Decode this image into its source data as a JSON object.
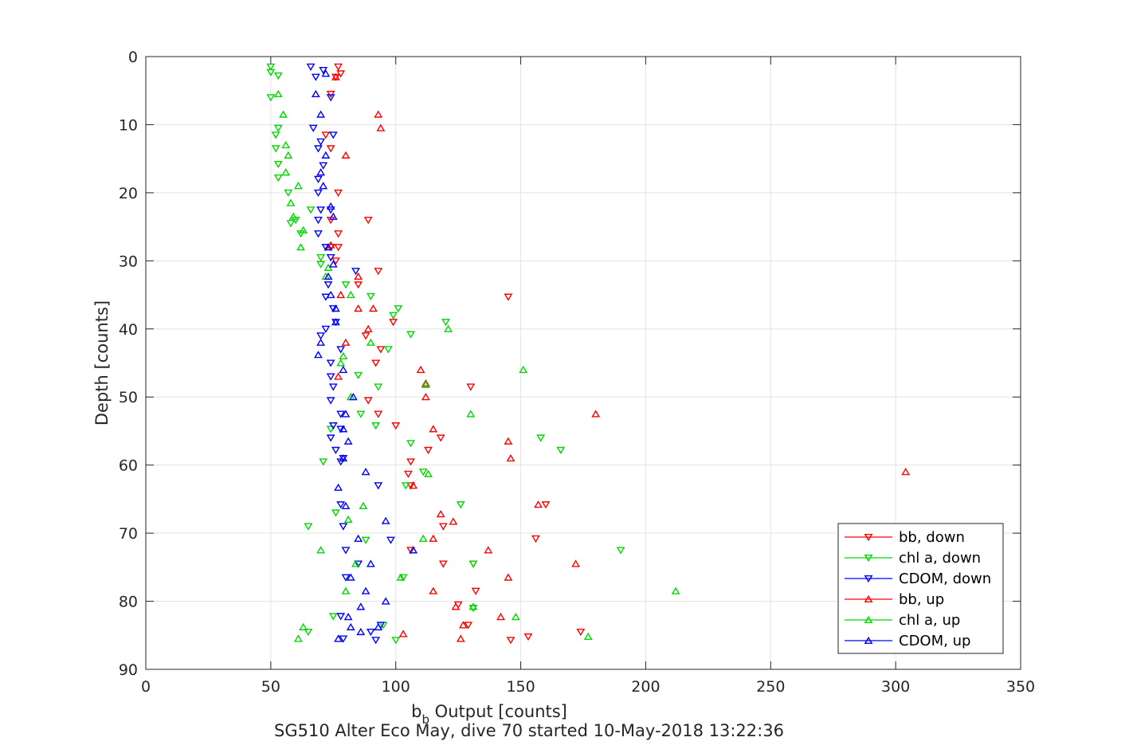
{
  "chart_data": {
    "type": "scatter",
    "title": "",
    "xlabel": "b",
    "xlabel_sub": "b",
    "xlabel_rest": " Output [counts]",
    "ylabel": "Depth [counts]",
    "caption": "SG510 Alter Eco May, dive 70 started 10-May-2018 13:22:36",
    "xlim": [
      0,
      350
    ],
    "ylim": [
      0,
      90
    ],
    "y_reversed": true,
    "grid": true,
    "legend_position": "bottom-right",
    "xticks": [
      0,
      50,
      100,
      150,
      200,
      250,
      300,
      350
    ],
    "yticks": [
      0,
      10,
      20,
      30,
      40,
      50,
      60,
      70,
      80,
      90
    ],
    "series": [
      {
        "name": "bb, down",
        "color": "#ff0000",
        "marker": "down",
        "points": [
          [
            77,
            1.5
          ],
          [
            78,
            2.5
          ],
          [
            76,
            3
          ],
          [
            74,
            5.5
          ],
          [
            72,
            11.5
          ],
          [
            74,
            13.5
          ],
          [
            77,
            20
          ],
          [
            89,
            24
          ],
          [
            74,
            24
          ],
          [
            77,
            26
          ],
          [
            74,
            28
          ],
          [
            77,
            28
          ],
          [
            76,
            30
          ],
          [
            93,
            31.5
          ],
          [
            85,
            33.5
          ],
          [
            145,
            35.3
          ],
          [
            99,
            39
          ],
          [
            88,
            41
          ],
          [
            94,
            43
          ],
          [
            92,
            45
          ],
          [
            130,
            48.5
          ],
          [
            89,
            50.5
          ],
          [
            93,
            52.5
          ],
          [
            100,
            54.2
          ],
          [
            118,
            56
          ],
          [
            113,
            57.8
          ],
          [
            106,
            59.5
          ],
          [
            105,
            61.3
          ],
          [
            106,
            63
          ],
          [
            160,
            65.8
          ],
          [
            119,
            69
          ],
          [
            156,
            70.8
          ],
          [
            106,
            72.5
          ],
          [
            131,
            74.5
          ],
          [
            119,
            74.5
          ],
          [
            132,
            78.5
          ],
          [
            125,
            80.5
          ],
          [
            129,
            83.5
          ],
          [
            174,
            84.5
          ],
          [
            153,
            85.2
          ],
          [
            146,
            85.7
          ]
        ]
      },
      {
        "name": "chl a, down",
        "color": "#00d800",
        "marker": "down",
        "points": [
          [
            50,
            1.5
          ],
          [
            50,
            2.3
          ],
          [
            53,
            2.8
          ],
          [
            50,
            6
          ],
          [
            53,
            10.5
          ],
          [
            52,
            11.5
          ],
          [
            52,
            13.5
          ],
          [
            53,
            15.8
          ],
          [
            53,
            17.8
          ],
          [
            57,
            20
          ],
          [
            66,
            22.5
          ],
          [
            60,
            24
          ],
          [
            58,
            24.5
          ],
          [
            62,
            26
          ],
          [
            70,
            29.5
          ],
          [
            70,
            30.5
          ],
          [
            80,
            33.5
          ],
          [
            90,
            35.2
          ],
          [
            101,
            37
          ],
          [
            99,
            38
          ],
          [
            120,
            39
          ],
          [
            97,
            43
          ],
          [
            106,
            40.8
          ],
          [
            85,
            46.8
          ],
          [
            93,
            48.5
          ],
          [
            86,
            52.5
          ],
          [
            92,
            54.2
          ],
          [
            74,
            54.7
          ],
          [
            106,
            56.8
          ],
          [
            158,
            56
          ],
          [
            166,
            57.8
          ],
          [
            71,
            59.5
          ],
          [
            111,
            61
          ],
          [
            104,
            63
          ],
          [
            126,
            65.8
          ],
          [
            76,
            67
          ],
          [
            65,
            69
          ],
          [
            88,
            71
          ],
          [
            190,
            72.5
          ],
          [
            131,
            74.5
          ],
          [
            103,
            76.5
          ],
          [
            95,
            83.5
          ],
          [
            75,
            82.2
          ],
          [
            65,
            84.5
          ],
          [
            131,
            81
          ],
          [
            100,
            85.7
          ]
        ]
      },
      {
        "name": "CDOM, down",
        "color": "#0000ff",
        "marker": "down",
        "points": [
          [
            66,
            1.5
          ],
          [
            71,
            2
          ],
          [
            68,
            3
          ],
          [
            74,
            6
          ],
          [
            67,
            10.5
          ],
          [
            70,
            12.5
          ],
          [
            69,
            13.5
          ],
          [
            75,
            11.5
          ],
          [
            71,
            16
          ],
          [
            69,
            18
          ],
          [
            69,
            20
          ],
          [
            70,
            22.5
          ],
          [
            74,
            22.5
          ],
          [
            69,
            24
          ],
          [
            69,
            26
          ],
          [
            72,
            28
          ],
          [
            74,
            29.5
          ],
          [
            84,
            31.5
          ],
          [
            73,
            33.5
          ],
          [
            72,
            35.3
          ],
          [
            75,
            37
          ],
          [
            76,
            39
          ],
          [
            72,
            40
          ],
          [
            70,
            41
          ],
          [
            78,
            43
          ],
          [
            74,
            45
          ],
          [
            74,
            47
          ],
          [
            75,
            48.5
          ],
          [
            74,
            50.5
          ],
          [
            78,
            52.5
          ],
          [
            75,
            54.2
          ],
          [
            78,
            54.7
          ],
          [
            74,
            56
          ],
          [
            76,
            57.8
          ],
          [
            78,
            59.5
          ],
          [
            79,
            59
          ],
          [
            93,
            63
          ],
          [
            78,
            65.8
          ],
          [
            79,
            69
          ],
          [
            98,
            71
          ],
          [
            80,
            72.5
          ],
          [
            85,
            74.5
          ],
          [
            80,
            76.5
          ],
          [
            78,
            82.2
          ],
          [
            94,
            83.5
          ],
          [
            90,
            84.5
          ],
          [
            79,
            85.5
          ],
          [
            92,
            85.7
          ]
        ]
      },
      {
        "name": "bb, up",
        "color": "#ff0000",
        "marker": "up",
        "points": [
          [
            76,
            3
          ],
          [
            93,
            8.5
          ],
          [
            94,
            10.5
          ],
          [
            80,
            14.5
          ],
          [
            85,
            32.3
          ],
          [
            78,
            35
          ],
          [
            85,
            37
          ],
          [
            91,
            37
          ],
          [
            89,
            40
          ],
          [
            80,
            42
          ],
          [
            110,
            46
          ],
          [
            112,
            48
          ],
          [
            112,
            50
          ],
          [
            180,
            52.5
          ],
          [
            115,
            54.7
          ],
          [
            145,
            56.5
          ],
          [
            146,
            59
          ],
          [
            304,
            61
          ],
          [
            107,
            63
          ],
          [
            157,
            65.8
          ],
          [
            118,
            67.2
          ],
          [
            123,
            68.3
          ],
          [
            115,
            70.8
          ],
          [
            137,
            72.5
          ],
          [
            172,
            74.5
          ],
          [
            145,
            76.5
          ],
          [
            115,
            78.5
          ],
          [
            124,
            80.8
          ],
          [
            142,
            82.3
          ],
          [
            127,
            83.5
          ],
          [
            103,
            84.8
          ],
          [
            126,
            85.5
          ],
          [
            77,
            47
          ],
          [
            74,
            27.7
          ]
        ]
      },
      {
        "name": "chl a, up",
        "color": "#00d800",
        "marker": "up",
        "points": [
          [
            53,
            5.5
          ],
          [
            55,
            8.5
          ],
          [
            56,
            13
          ],
          [
            57,
            14.5
          ],
          [
            56,
            17
          ],
          [
            61,
            19
          ],
          [
            58,
            21.5
          ],
          [
            59,
            23.5
          ],
          [
            63,
            25.5
          ],
          [
            62,
            28
          ],
          [
            73,
            31
          ],
          [
            72,
            32.3
          ],
          [
            82,
            35
          ],
          [
            112,
            48.2
          ],
          [
            82,
            50
          ],
          [
            130,
            52.5
          ],
          [
            151,
            46
          ],
          [
            107,
            72.5
          ],
          [
            113,
            61.3
          ],
          [
            121,
            40
          ],
          [
            90,
            42
          ],
          [
            79,
            44
          ],
          [
            78,
            45
          ],
          [
            87,
            66
          ],
          [
            81,
            68
          ],
          [
            70,
            72.5
          ],
          [
            212,
            78.5
          ],
          [
            148,
            82.3
          ],
          [
            131,
            80.8
          ],
          [
            80,
            78.5
          ],
          [
            84,
            74.5
          ],
          [
            111,
            70.8
          ],
          [
            61,
            85.5
          ],
          [
            63,
            83.8
          ],
          [
            177,
            85.2
          ],
          [
            102,
            76.5
          ]
        ]
      },
      {
        "name": "CDOM, up",
        "color": "#0000ff",
        "marker": "up",
        "points": [
          [
            72,
            2.5
          ],
          [
            68,
            5.5
          ],
          [
            70,
            8.5
          ],
          [
            72,
            14.5
          ],
          [
            70,
            17
          ],
          [
            71,
            19
          ],
          [
            74,
            22
          ],
          [
            75,
            23.5
          ],
          [
            73,
            28
          ],
          [
            75,
            30.5
          ],
          [
            73,
            32.3
          ],
          [
            74,
            35
          ],
          [
            76,
            37
          ],
          [
            76,
            39
          ],
          [
            70,
            42
          ],
          [
            69,
            43.8
          ],
          [
            79,
            46
          ],
          [
            83,
            50
          ],
          [
            80,
            52.5
          ],
          [
            79,
            54.7
          ],
          [
            81,
            56.5
          ],
          [
            79,
            59
          ],
          [
            88,
            61
          ],
          [
            77,
            63.3
          ],
          [
            80,
            66
          ],
          [
            96,
            68.2
          ],
          [
            85,
            70.8
          ],
          [
            107,
            72.5
          ],
          [
            90,
            74.5
          ],
          [
            82,
            76.5
          ],
          [
            88,
            78.5
          ],
          [
            96,
            80
          ],
          [
            86,
            80.8
          ],
          [
            81,
            82.3
          ],
          [
            82,
            83.8
          ],
          [
            86,
            84.5
          ],
          [
            77,
            85.5
          ],
          [
            93,
            83.8
          ]
        ]
      }
    ]
  }
}
